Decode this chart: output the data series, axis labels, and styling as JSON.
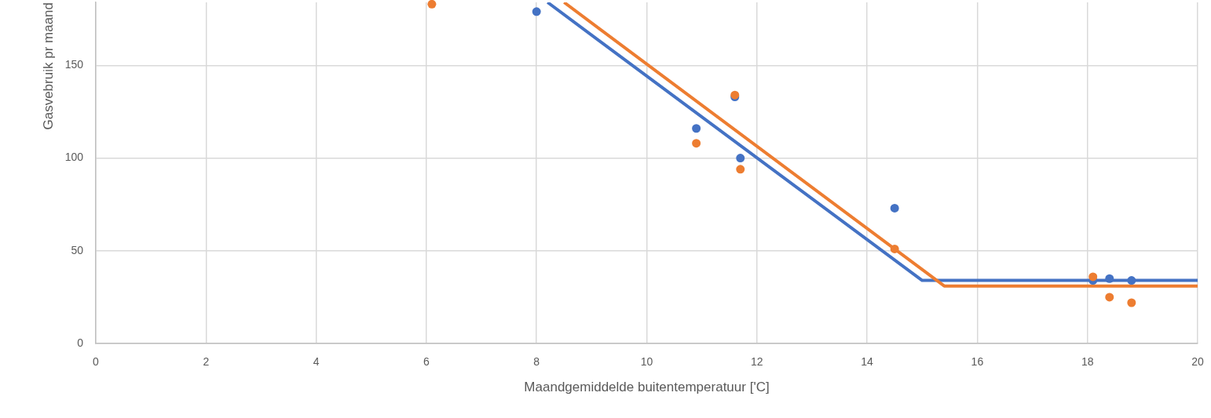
{
  "chart_data": {
    "type": "scatter",
    "xlabel": "Maandgemiddelde buitentemperatuur ['C]",
    "ylabel": "Gasvebruik pr maand",
    "xlim": [
      0,
      20
    ],
    "xticks": [
      0,
      2,
      4,
      6,
      8,
      10,
      12,
      14,
      16,
      18,
      20
    ],
    "ylim": [
      0,
      184
    ],
    "yticks": [
      0,
      50,
      100,
      150
    ],
    "grid": true,
    "marker": "circle",
    "series": [
      {
        "type": "line",
        "color": "#4472c4",
        "marker": "none",
        "x": [
          8.2,
          15.0,
          20
        ],
        "values": [
          184,
          34,
          34
        ]
      },
      {
        "type": "line",
        "color": "#ed7d31",
        "marker": "none",
        "x": [
          8.5,
          15.4,
          20
        ],
        "values": [
          184,
          31,
          31
        ]
      },
      {
        "color": "#4472c4",
        "x": [
          8.0,
          10.9,
          11.6,
          11.7,
          14.5,
          18.1,
          18.4,
          18.8
        ],
        "values": [
          179,
          116,
          133,
          100,
          73,
          34,
          35,
          34
        ]
      },
      {
        "color": "#ed7d31",
        "x": [
          6.1,
          10.9,
          11.6,
          11.7,
          14.5,
          18.1,
          18.4,
          18.8
        ],
        "values": [
          183,
          108,
          134,
          94,
          51,
          36,
          25,
          22
        ]
      }
    ]
  }
}
